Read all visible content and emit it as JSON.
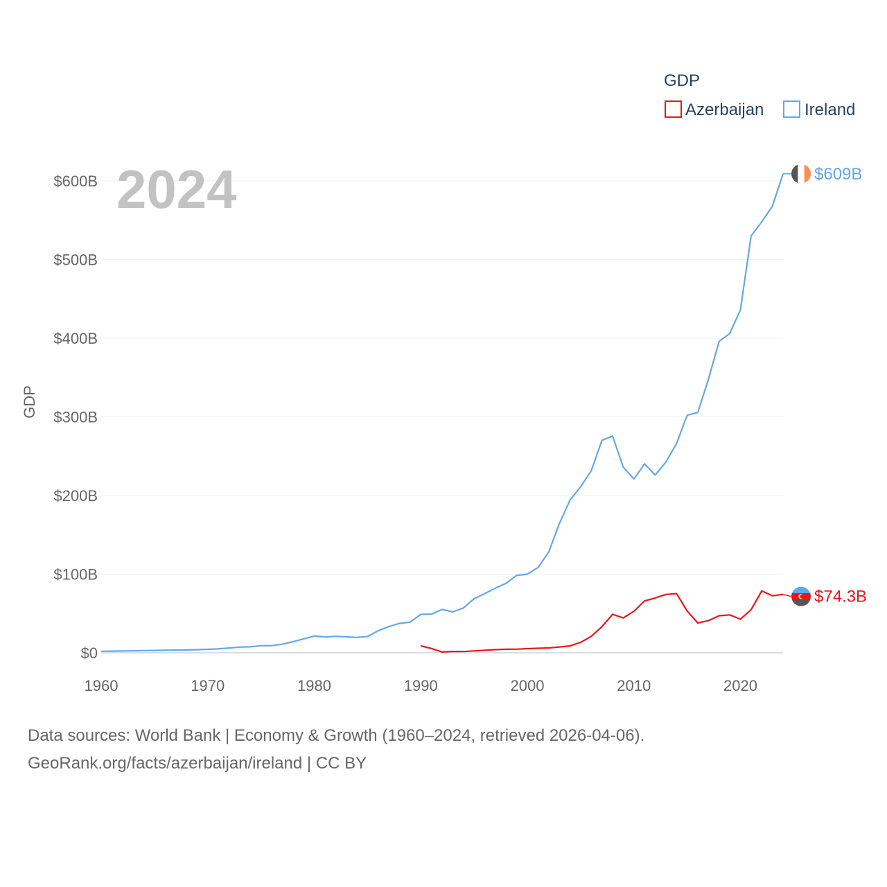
{
  "chart_data": {
    "type": "line",
    "year_label": "2024",
    "ylabel": "GDP",
    "legend_title": "GDP",
    "xlim": [
      1960,
      2024
    ],
    "ylim": [
      0,
      620
    ],
    "x_ticks": [
      1960,
      1970,
      1980,
      1990,
      2000,
      2010,
      2020
    ],
    "x_tick_labels": [
      "1960",
      "1970",
      "1980",
      "1990",
      "2000",
      "2010",
      "2020"
    ],
    "y_ticks": [
      0,
      100,
      200,
      300,
      400,
      500,
      600
    ],
    "y_tick_labels": [
      "$0",
      "$100B",
      "$200B",
      "$300B",
      "$400B",
      "$500B",
      "$600B"
    ],
    "series": [
      {
        "name": "Azerbaijan",
        "color": "#e8161b",
        "end_label": "$74.3B",
        "flag": "azerbaijan-flag",
        "flag_colors": [
          "#5aa9ee",
          "#e8161b",
          "#555555"
        ],
        "x": [
          1990,
          1991,
          1992,
          1993,
          1994,
          1995,
          1996,
          1997,
          1998,
          1999,
          2000,
          2001,
          2002,
          2003,
          2004,
          2005,
          2006,
          2007,
          2008,
          2009,
          2010,
          2011,
          2012,
          2013,
          2014,
          2015,
          2016,
          2017,
          2018,
          2019,
          2020,
          2021,
          2022,
          2023,
          2024
        ],
        "values": [
          8.8,
          5.5,
          1.0,
          1.7,
          1.6,
          2.4,
          3.2,
          4.0,
          4.5,
          4.6,
          5.3,
          5.7,
          6.2,
          7.3,
          8.7,
          13.2,
          21.0,
          33.1,
          48.9,
          44.3,
          52.9,
          65.9,
          69.7,
          74.2,
          75.2,
          53.1,
          37.9,
          40.9,
          47.1,
          48.2,
          42.7,
          54.8,
          78.7,
          72.4,
          74.3
        ]
      },
      {
        "name": "Ireland",
        "color": "#64a7e6",
        "end_label": "$609B",
        "flag": "ireland-flag",
        "flag_colors": [
          "#555555",
          "#ffffff",
          "#ff8c52"
        ],
        "x": [
          1960,
          1961,
          1962,
          1963,
          1964,
          1965,
          1966,
          1967,
          1968,
          1969,
          1970,
          1971,
          1972,
          1973,
          1974,
          1975,
          1976,
          1977,
          1978,
          1979,
          1980,
          1981,
          1982,
          1983,
          1984,
          1985,
          1986,
          1987,
          1988,
          1989,
          1990,
          1991,
          1992,
          1993,
          1994,
          1995,
          1996,
          1997,
          1998,
          1999,
          2000,
          2001,
          2002,
          2003,
          2004,
          2005,
          2006,
          2007,
          2008,
          2009,
          2010,
          2011,
          2012,
          2013,
          2014,
          2015,
          2016,
          2017,
          2018,
          2019,
          2020,
          2021,
          2022,
          2023,
          2024
        ],
        "values": [
          1.9,
          2.1,
          2.3,
          2.5,
          2.8,
          3.0,
          3.2,
          3.4,
          3.6,
          3.9,
          4.4,
          5.0,
          6.1,
          7.2,
          7.6,
          9.0,
          9.1,
          10.8,
          14.1,
          17.7,
          21.2,
          20.2,
          20.9,
          20.3,
          19.6,
          20.7,
          28.0,
          33.3,
          37.4,
          38.9,
          48.9,
          49.2,
          55.1,
          52.1,
          57.0,
          68.7,
          75.2,
          82.2,
          88.4,
          98.4,
          99.9,
          108.4,
          128.0,
          164.0,
          194.0,
          211.0,
          231.5,
          270.0,
          275.5,
          236.0,
          221.0,
          240.2,
          226.0,
          242.5,
          266.0,
          302.0,
          305.5,
          348.0,
          396.0,
          406.0,
          436.0,
          530.0,
          548.0,
          567.8,
          609.0
        ]
      }
    ]
  },
  "source": {
    "line1": "Data sources: World Bank | Economy & Growth (1960–2024, retrieved 2026-04-06).",
    "line2": "GeoRank.org/facts/azerbaijan/ireland | CC BY"
  }
}
